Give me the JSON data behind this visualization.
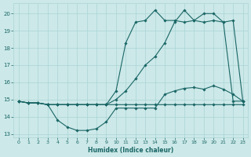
{
  "xlabel": "Humidex (Indice chaleur)",
  "background_color": "#cce8e8",
  "grid_color": "#aad4d4",
  "line_color": "#1a6666",
  "xlim_min": -0.5,
  "xlim_max": 23.5,
  "ylim_min": 12.8,
  "ylim_max": 20.6,
  "yticks": [
    13,
    14,
    15,
    16,
    17,
    18,
    19,
    20
  ],
  "xticks": [
    0,
    1,
    2,
    3,
    4,
    5,
    6,
    7,
    8,
    9,
    10,
    11,
    12,
    13,
    14,
    15,
    16,
    17,
    18,
    19,
    20,
    21,
    22,
    23
  ],
  "series": [
    {
      "name": "line_upper_steep",
      "x": [
        0,
        1,
        2,
        3,
        4,
        5,
        6,
        7,
        8,
        9,
        10,
        11,
        12,
        13,
        14,
        15,
        16,
        17,
        18,
        19,
        20,
        21,
        22,
        23
      ],
      "y": [
        14.9,
        14.8,
        14.8,
        14.7,
        14.7,
        14.7,
        14.7,
        14.7,
        14.7,
        14.7,
        15.5,
        18.3,
        19.5,
        19.6,
        20.2,
        19.6,
        19.6,
        19.5,
        19.6,
        20.0,
        20.0,
        19.5,
        19.6,
        14.9
      ]
    },
    {
      "name": "line_lower_dip",
      "x": [
        0,
        1,
        2,
        3,
        4,
        5,
        6,
        7,
        8,
        9,
        10,
        11,
        12,
        13,
        14,
        15,
        16,
        17,
        18,
        19,
        20,
        21,
        22,
        23
      ],
      "y": [
        14.9,
        14.8,
        14.8,
        14.7,
        13.8,
        13.4,
        13.2,
        13.2,
        13.3,
        13.7,
        14.5,
        14.5,
        14.5,
        14.5,
        14.5,
        15.3,
        15.5,
        15.65,
        15.7,
        15.6,
        15.8,
        15.6,
        15.3,
        14.9
      ]
    },
    {
      "name": "line_flat",
      "x": [
        0,
        1,
        2,
        3,
        4,
        5,
        6,
        7,
        8,
        9,
        10,
        11,
        12,
        13,
        14,
        15,
        16,
        17,
        18,
        19,
        20,
        21,
        22,
        23
      ],
      "y": [
        14.9,
        14.8,
        14.8,
        14.7,
        14.7,
        14.7,
        14.7,
        14.7,
        14.7,
        14.7,
        14.7,
        14.7,
        14.7,
        14.7,
        14.7,
        14.7,
        14.7,
        14.7,
        14.7,
        14.7,
        14.7,
        14.7,
        14.7,
        14.7
      ]
    },
    {
      "name": "line_mid_rise",
      "x": [
        0,
        1,
        2,
        3,
        4,
        5,
        6,
        7,
        8,
        9,
        10,
        11,
        12,
        13,
        14,
        15,
        16,
        17,
        18,
        19,
        20,
        21,
        22,
        23
      ],
      "y": [
        14.9,
        14.8,
        14.8,
        14.7,
        14.7,
        14.7,
        14.7,
        14.7,
        14.7,
        14.7,
        15.0,
        15.5,
        16.2,
        17.0,
        17.5,
        18.3,
        19.5,
        20.2,
        19.6,
        19.5,
        19.6,
        19.5,
        14.9,
        14.9
      ]
    }
  ]
}
